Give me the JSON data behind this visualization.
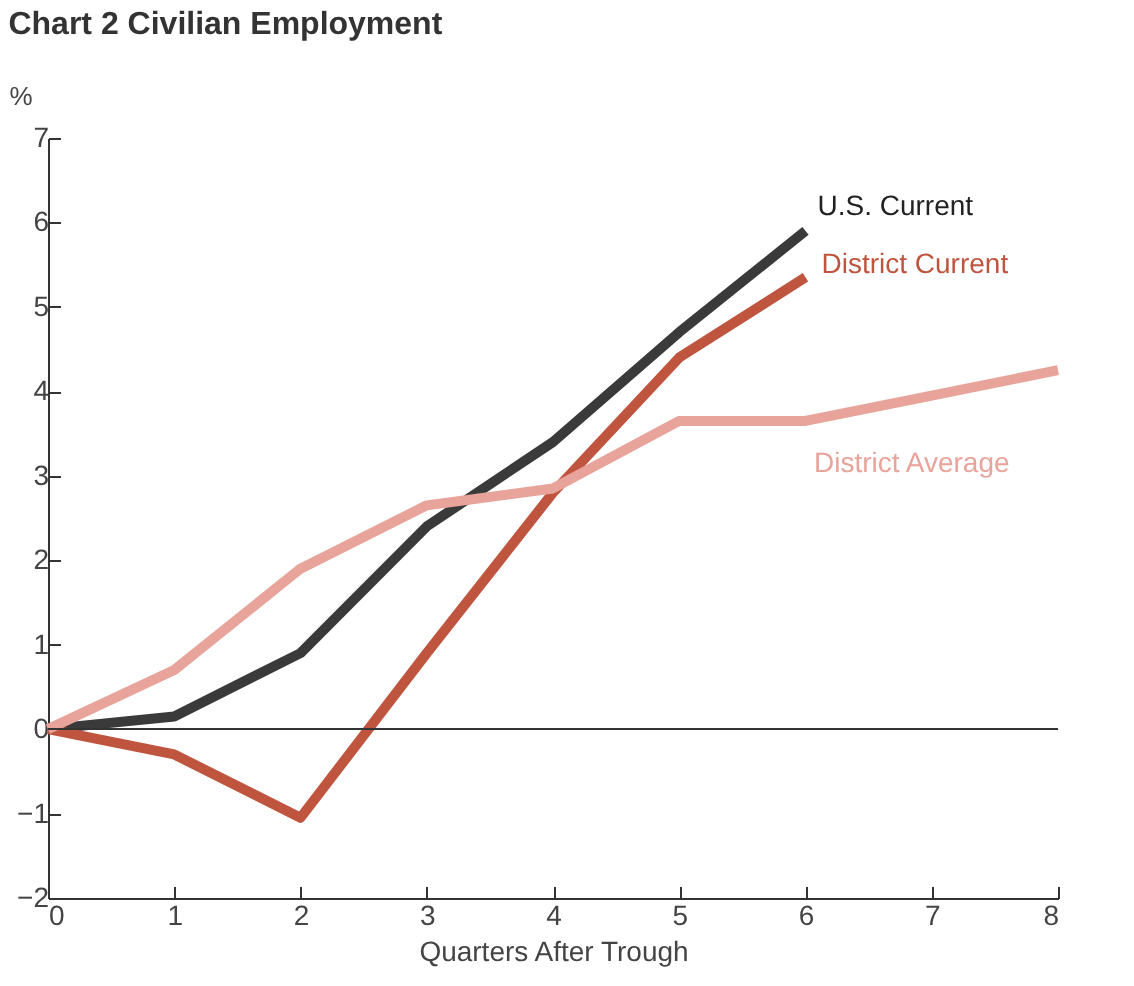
{
  "chart_data": {
    "type": "line",
    "title": "Chart 2 Civilian Employment",
    "xlabel": "Quarters After Trough",
    "ylabel": "%",
    "series": [
      {
        "name": "U.S. Current",
        "color": "#3a3a3a",
        "x": [
          0,
          1,
          2,
          3,
          4,
          5,
          6
        ],
        "values": [
          0,
          0.15,
          0.9,
          2.4,
          3.4,
          4.7,
          5.9
        ]
      },
      {
        "name": "District Current",
        "color": "#c0553f",
        "x": [
          0,
          1,
          2,
          3,
          4,
          5,
          6
        ],
        "values": [
          0,
          -0.3,
          -1.05,
          0.9,
          2.8,
          4.4,
          5.35
        ]
      },
      {
        "name": "District Average",
        "color": "#e8a39a",
        "x": [
          0,
          1,
          2,
          3,
          4,
          5,
          6,
          7,
          8
        ],
        "values": [
          0,
          0.7,
          1.9,
          2.65,
          2.85,
          3.65,
          3.65,
          3.95,
          4.25
        ]
      }
    ],
    "xlim": [
      0,
      8
    ],
    "xticks": [
      0,
      1,
      2,
      3,
      4,
      5,
      6,
      7,
      8
    ],
    "ylim": [
      -2,
      7
    ],
    "yticks": [
      -2,
      -1,
      0,
      1,
      2,
      3,
      4,
      5,
      6,
      7
    ],
    "ref_lines": [
      {
        "axis": "y",
        "value": 0,
        "color": "#333333"
      }
    ],
    "grid": false,
    "legend": false,
    "line_style": "solid",
    "marker": "none"
  }
}
